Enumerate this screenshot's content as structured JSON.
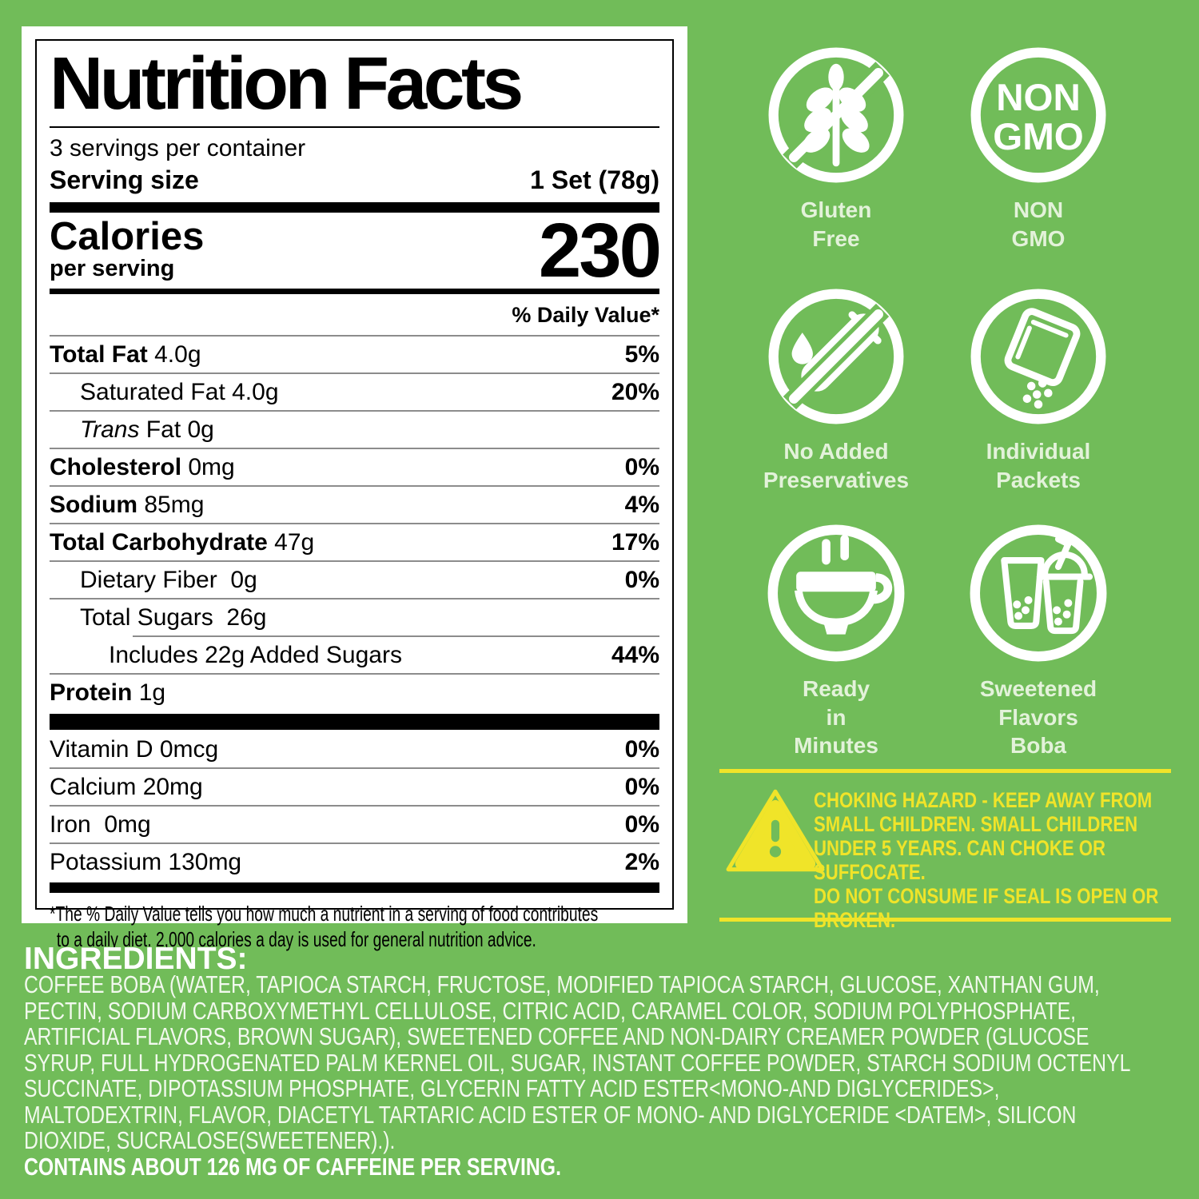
{
  "colors": {
    "background": "#71BC59",
    "warning_yellow": "#F0E429",
    "badge_caption": "#E3F2DA"
  },
  "nutrition_label": {
    "title": "Nutrition Facts",
    "servings_per_container": "3 servings per container",
    "serving_size_label": "Serving size",
    "serving_size_value": "1 Set (78g)",
    "calories_label": "Calories",
    "calories_sublabel": "per serving",
    "calories_value": "230",
    "daily_value_header": "% Daily Value*",
    "rows": [
      {
        "name": "Total Fat",
        "amount": "4.0g",
        "dv": "5%",
        "bold": true,
        "indent": 0
      },
      {
        "name": "Saturated Fat",
        "amount": "4.0g",
        "dv": "20%",
        "bold": false,
        "indent": 1
      },
      {
        "name": "Trans",
        "amount": "Fat 0g",
        "dv": "",
        "bold": false,
        "italic": true,
        "indent": 1
      },
      {
        "name": "Cholesterol",
        "amount": "0mg",
        "dv": "0%",
        "bold": true,
        "indent": 0
      },
      {
        "name": "Sodium",
        "amount": "85mg",
        "dv": "4%",
        "bold": true,
        "indent": 0
      },
      {
        "name": "Total Carbohydrate",
        "amount": "47g",
        "dv": "17%",
        "bold": true,
        "indent": 0
      },
      {
        "name": "Dietary Fiber",
        "amount": " 0g",
        "dv": "0%",
        "bold": false,
        "indent": 1
      },
      {
        "name": "Total Sugars",
        "amount": " 26g",
        "dv": "",
        "bold": false,
        "indent": 1,
        "divider_indent": 104
      },
      {
        "name": "Includes 22g Added Sugars",
        "amount": "",
        "dv": "44%",
        "bold": false,
        "indent": 2
      },
      {
        "name": "Protein",
        "amount": "1g",
        "dv": "",
        "bold": true,
        "indent": 0
      }
    ],
    "vitamins": [
      {
        "name": "Vitamin D 0mcg",
        "dv": "0%"
      },
      {
        "name": "Calcium 20mg",
        "dv": "0%"
      },
      {
        "name": "Iron  0mg",
        "dv": "0%"
      },
      {
        "name": "Potassium 130mg",
        "dv": "2%"
      }
    ],
    "footnote": "*The % Daily Value tells you how much a nutrient in a serving of food contributes\nto a daily diet. 2,000 calories a day is used for general nutrition advice."
  },
  "badges": [
    {
      "name": "gluten-free",
      "label": "Gluten\nFree"
    },
    {
      "name": "non-gmo",
      "label": "NON\nGMO",
      "icon_text": [
        "NON",
        "GMO"
      ]
    },
    {
      "name": "no-added-preservatives",
      "label": "No Added\nPreservatives"
    },
    {
      "name": "individual-packets",
      "label": "Individual\nPackets"
    },
    {
      "name": "ready-in-minutes",
      "label": "Ready\nin\nMinutes"
    },
    {
      "name": "sweetened-flavors-boba",
      "label": "Sweetened\nFlavors\nBoba"
    }
  ],
  "warning": {
    "text": "CHOKING HAZARD - KEEP AWAY FROM\nSMALL CHILDREN. SMALL CHILDREN\nUNDER 5 YEARS. CAN CHOKE OR\nSUFFOCATE.\nDO NOT CONSUME IF SEAL IS OPEN OR\nBROKEN."
  },
  "ingredients": {
    "heading": "INGREDIENTS:",
    "body": "COFFEE BOBA (WATER, TAPIOCA STARCH, FRUCTOSE, MODIFIED TAPIOCA STARCH, GLUCOSE, XANTHAN GUM,\nPECTIN, SODIUM CARBOXYMETHYL CELLULOSE, CITRIC ACID, CARAMEL COLOR, SODIUM POLYPHOSPHATE,\nARTIFICIAL FLAVORS, BROWN SUGAR), SWEETENED COFFEE AND NON-DAIRY CREAMER POWDER (GLUCOSE\nSYRUP, FULL HYDROGENATED PALM KERNEL OIL, SUGAR, INSTANT COFFEE POWDER, STARCH SODIUM OCTENYL\nSUCCINATE, DIPOTASSIUM PHOSPHATE, GLYCERIN FATTY ACID ESTER<MONO-AND DIGLYCERIDES>,\nMALTODEXTRIN, FLAVOR, DIACETYL TARTARIC ACID ESTER OF MONO- AND DIGLYCERIDE <DATEM>, SILICON\nDIOXIDE, SUCRALOSE(SWEETENER).).",
    "caffeine_note": "CONTAINS ABOUT 126 MG OF CAFFEINE PER SERVING."
  }
}
